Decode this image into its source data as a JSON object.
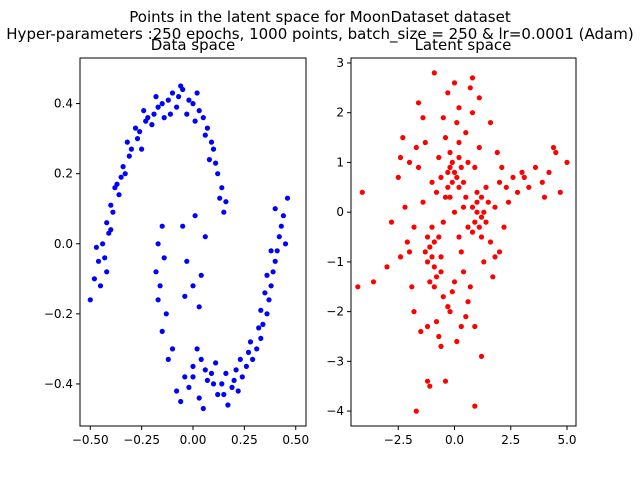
{
  "figure": {
    "title_line1": "Points in the latent space for MoonDataset dataset",
    "title_line2": "Hyper-parameters :250 epochs, 1000 points, batch_size = 250 & lr=0.0001 (Adam)"
  },
  "chart_data": [
    {
      "type": "scatter",
      "title": "Data space",
      "xlabel": "",
      "ylabel": "",
      "xlim": [
        -0.55,
        0.55
      ],
      "ylim": [
        -0.52,
        0.53
      ],
      "xticks": [
        -0.5,
        -0.25,
        0.0,
        0.25,
        0.5
      ],
      "xtick_labels": [
        "−0.50",
        "−0.25",
        "0.00",
        "0.25",
        "0.50"
      ],
      "yticks": [
        -0.4,
        -0.2,
        0.0,
        0.2,
        0.4
      ],
      "ytick_labels": [
        "−0.4",
        "−0.2",
        "0.0",
        "0.2",
        "0.4"
      ],
      "grid": false,
      "color": "#0000ff",
      "points": [
        [
          -0.5,
          -0.16
        ],
        [
          -0.48,
          -0.1
        ],
        [
          -0.46,
          -0.05
        ],
        [
          -0.44,
          0.0
        ],
        [
          -0.42,
          0.06
        ],
        [
          -0.4,
          0.11
        ],
        [
          -0.37,
          0.17
        ],
        [
          -0.34,
          0.22
        ],
        [
          -0.3,
          0.27
        ],
        [
          -0.26,
          0.32
        ],
        [
          -0.22,
          0.36
        ],
        [
          -0.17,
          0.39
        ],
        [
          -0.12,
          0.41
        ],
        [
          -0.07,
          0.42
        ],
        [
          -0.02,
          0.41
        ],
        [
          0.03,
          0.38
        ],
        [
          0.07,
          0.33
        ],
        [
          0.1,
          0.27
        ],
        [
          0.12,
          0.2
        ],
        [
          0.13,
          0.13
        ],
        [
          -0.45,
          -0.12
        ],
        [
          -0.43,
          -0.04
        ],
        [
          -0.41,
          0.03
        ],
        [
          -0.39,
          0.09
        ],
        [
          -0.35,
          0.19
        ],
        [
          -0.31,
          0.25
        ],
        [
          -0.27,
          0.3
        ],
        [
          -0.23,
          0.35
        ],
        [
          -0.19,
          0.37
        ],
        [
          -0.15,
          0.4
        ],
        [
          -0.1,
          0.43
        ],
        [
          -0.05,
          0.44
        ],
        [
          0.0,
          0.4
        ],
        [
          0.05,
          0.36
        ],
        [
          0.09,
          0.29
        ],
        [
          0.11,
          0.23
        ],
        [
          0.14,
          0.16
        ],
        [
          0.15,
          0.09
        ],
        [
          -0.36,
          0.14
        ],
        [
          -0.33,
          0.2
        ],
        [
          -0.28,
          0.33
        ],
        [
          -0.24,
          0.38
        ],
        [
          -0.2,
          0.34
        ],
        [
          -0.14,
          0.36
        ],
        [
          -0.08,
          0.39
        ],
        [
          -0.03,
          0.37
        ],
        [
          0.02,
          0.43
        ],
        [
          0.06,
          0.31
        ],
        [
          0.08,
          0.24
        ],
        [
          0.16,
          0.12
        ],
        [
          -0.4,
          0.04
        ],
        [
          -0.42,
          -0.08
        ],
        [
          -0.47,
          -0.01
        ],
        [
          -0.38,
          0.16
        ],
        [
          -0.32,
          0.29
        ],
        [
          -0.25,
          0.27
        ],
        [
          -0.18,
          0.42
        ],
        [
          -0.11,
          0.37
        ],
        [
          -0.06,
          0.45
        ],
        [
          0.01,
          0.35
        ],
        [
          -0.08,
          -0.42
        ],
        [
          -0.04,
          -0.38
        ],
        [
          0.0,
          -0.35
        ],
        [
          0.04,
          -0.33
        ],
        [
          0.09,
          -0.37
        ],
        [
          0.14,
          -0.4
        ],
        [
          0.19,
          -0.41
        ],
        [
          0.24,
          -0.38
        ],
        [
          0.29,
          -0.33
        ],
        [
          0.33,
          -0.27
        ],
        [
          0.36,
          -0.2
        ],
        [
          0.38,
          -0.12
        ],
        [
          0.4,
          -0.05
        ],
        [
          0.42,
          0.02
        ],
        [
          0.44,
          0.08
        ],
        [
          0.46,
          0.13
        ],
        [
          -0.12,
          -0.33
        ],
        [
          -0.15,
          -0.25
        ],
        [
          -0.17,
          -0.16
        ],
        [
          -0.18,
          -0.08
        ],
        [
          -0.17,
          0.0
        ],
        [
          -0.15,
          0.05
        ],
        [
          -0.06,
          -0.45
        ],
        [
          -0.02,
          -0.41
        ],
        [
          0.03,
          -0.44
        ],
        [
          0.07,
          -0.39
        ],
        [
          0.12,
          -0.43
        ],
        [
          0.17,
          -0.46
        ],
        [
          0.22,
          -0.42
        ],
        [
          0.26,
          -0.35
        ],
        [
          0.31,
          -0.3
        ],
        [
          0.34,
          -0.23
        ],
        [
          0.37,
          -0.16
        ],
        [
          0.39,
          -0.08
        ],
        [
          0.41,
          -0.02
        ],
        [
          0.43,
          0.05
        ],
        [
          -0.1,
          -0.3
        ],
        [
          -0.13,
          -0.2
        ],
        [
          -0.16,
          -0.12
        ],
        [
          -0.14,
          -0.04
        ],
        [
          0.02,
          -0.3
        ],
        [
          0.06,
          -0.36
        ],
        [
          0.11,
          -0.34
        ],
        [
          0.16,
          -0.37
        ],
        [
          0.21,
          -0.36
        ],
        [
          0.27,
          -0.31
        ],
        [
          0.32,
          -0.24
        ],
        [
          0.35,
          -0.14
        ],
        [
          0.38,
          -0.02
        ],
        [
          0.4,
          0.1
        ],
        [
          0.0,
          -0.38
        ],
        [
          0.05,
          -0.47
        ],
        [
          0.1,
          -0.4
        ],
        [
          0.15,
          -0.43
        ],
        [
          0.2,
          -0.39
        ],
        [
          0.23,
          -0.33
        ],
        [
          0.28,
          -0.28
        ],
        [
          0.33,
          -0.19
        ],
        [
          0.36,
          -0.09
        ],
        [
          0.45,
          0.0
        ],
        [
          -0.05,
          0.05
        ],
        [
          -0.03,
          -0.05
        ],
        [
          0.0,
          -0.12
        ],
        [
          0.03,
          -0.18
        ],
        [
          0.06,
          0.02
        ],
        [
          0.04,
          -0.09
        ],
        [
          -0.04,
          -0.15
        ],
        [
          0.01,
          0.08
        ]
      ]
    },
    {
      "type": "scatter",
      "title": "Latent space",
      "xlabel": "",
      "ylabel": "",
      "xlim": [
        -4.6,
        5.4
      ],
      "ylim": [
        -4.3,
        3.1
      ],
      "xticks": [
        -2.5,
        0.0,
        2.5,
        5.0
      ],
      "xtick_labels": [
        "−2.5",
        "0.0",
        "2.5",
        "5.0"
      ],
      "yticks": [
        -4,
        -3,
        -2,
        -1,
        0,
        1,
        2,
        3
      ],
      "ytick_labels": [
        "−4",
        "−3",
        "−2",
        "−1",
        "0",
        "1",
        "2",
        "3"
      ],
      "grid": false,
      "color": "#ff0000",
      "points": [
        [
          0.0,
          0.0
        ],
        [
          0.2,
          0.5
        ],
        [
          -0.3,
          0.8
        ],
        [
          0.5,
          0.3
        ],
        [
          -0.5,
          -0.2
        ],
        [
          0.8,
          -0.4
        ],
        [
          -0.8,
          0.4
        ],
        [
          0.3,
          -0.8
        ],
        [
          -0.2,
          1.2
        ],
        [
          0.6,
          1.0
        ],
        [
          -0.6,
          -0.9
        ],
        [
          1.0,
          0.2
        ],
        [
          -1.0,
          0.6
        ],
        [
          0.4,
          -1.2
        ],
        [
          -0.4,
          1.5
        ],
        [
          1.2,
          -0.1
        ],
        [
          -1.2,
          -0.5
        ],
        [
          0.1,
          1.8
        ],
        [
          -0.1,
          -1.6
        ],
        [
          0.9,
          0.9
        ],
        [
          -0.9,
          -1.1
        ],
        [
          1.4,
          0.5
        ],
        [
          -1.4,
          0.2
        ],
        [
          0.7,
          -1.5
        ],
        [
          -0.7,
          1.1
        ],
        [
          0.2,
          2.1
        ],
        [
          -0.2,
          -2.0
        ],
        [
          1.6,
          -0.6
        ],
        [
          -1.6,
          0.9
        ],
        [
          0.5,
          1.6
        ],
        [
          -0.5,
          -1.7
        ],
        [
          1.1,
          1.3
        ],
        [
          -1.1,
          -1.4
        ],
        [
          0.3,
          -2.3
        ],
        [
          -0.3,
          2.4
        ],
        [
          1.8,
          0.1
        ],
        [
          -1.8,
          -0.3
        ],
        [
          0.8,
          2.0
        ],
        [
          -0.8,
          -2.2
        ],
        [
          1.3,
          -1.0
        ],
        [
          -1.3,
          1.4
        ],
        [
          2.0,
          0.6
        ],
        [
          -2.0,
          -0.8
        ],
        [
          0.0,
          2.6
        ],
        [
          0.1,
          -2.6
        ],
        [
          0.4,
          0.1
        ],
        [
          -0.4,
          0.3
        ],
        [
          0.6,
          -0.3
        ],
        [
          -0.6,
          0.7
        ],
        [
          0.2,
          -0.5
        ],
        [
          1.0,
          0.0
        ],
        [
          1.1,
          -0.3
        ],
        [
          1.2,
          0.3
        ],
        [
          1.3,
          0.0
        ],
        [
          0.9,
          -0.2
        ],
        [
          1.4,
          -0.2
        ],
        [
          1.0,
          0.4
        ],
        [
          1.5,
          0.2
        ],
        [
          0.8,
          0.1
        ],
        [
          1.2,
          -0.5
        ],
        [
          -0.2,
          0.9
        ],
        [
          -0.1,
          0.6
        ],
        [
          0.0,
          0.8
        ],
        [
          0.1,
          0.7
        ],
        [
          -0.3,
          0.5
        ],
        [
          0.3,
          0.9
        ],
        [
          -0.2,
          0.3
        ],
        [
          0.4,
          0.6
        ],
        [
          -0.1,
          1.0
        ],
        [
          0.2,
          1.1
        ],
        [
          -0.9,
          -0.6
        ],
        [
          -1.0,
          -0.9
        ],
        [
          -1.1,
          -0.7
        ],
        [
          -0.8,
          -1.3
        ],
        [
          -1.2,
          -1.0
        ],
        [
          -0.7,
          -0.5
        ],
        [
          -1.3,
          -0.8
        ],
        [
          -0.9,
          -1.5
        ],
        [
          -1.0,
          -0.3
        ],
        [
          -0.6,
          -1.2
        ],
        [
          2.6,
          0.7
        ],
        [
          3.0,
          0.8
        ],
        [
          3.3,
          0.5
        ],
        [
          3.6,
          0.9
        ],
        [
          3.9,
          0.6
        ],
        [
          4.2,
          0.8
        ],
        [
          4.4,
          1.3
        ],
        [
          4.7,
          0.4
        ],
        [
          5.0,
          1.0
        ],
        [
          2.8,
          0.4
        ],
        [
          3.1,
          0.7
        ],
        [
          4.0,
          0.3
        ],
        [
          4.5,
          1.2
        ],
        [
          -3.0,
          -1.1
        ],
        [
          -3.6,
          -1.4
        ],
        [
          -4.3,
          -1.5
        ],
        [
          -4.1,
          0.4
        ],
        [
          -2.5,
          0.7
        ],
        [
          -2.8,
          -0.2
        ],
        [
          -2.4,
          -0.9
        ],
        [
          -1.6,
          2.2
        ],
        [
          -1.4,
          1.9
        ],
        [
          -0.9,
          2.8
        ],
        [
          0.8,
          2.7
        ],
        [
          0.7,
          2.5
        ],
        [
          1.1,
          2.3
        ],
        [
          -2.3,
          1.5
        ],
        [
          -1.8,
          -2.0
        ],
        [
          -1.5,
          -2.4
        ],
        [
          -1.2,
          -2.3
        ],
        [
          -0.7,
          -2.5
        ],
        [
          -0.6,
          -2.7
        ],
        [
          0.5,
          -2.1
        ],
        [
          0.9,
          -2.3
        ],
        [
          1.2,
          -2.9
        ],
        [
          -0.4,
          -3.4
        ],
        [
          -1.1,
          -3.5
        ],
        [
          -1.2,
          -3.4
        ],
        [
          0.9,
          -3.9
        ],
        [
          -1.7,
          -4.0
        ],
        [
          2.0,
          -0.8
        ],
        [
          2.2,
          -0.3
        ],
        [
          2.4,
          0.2
        ],
        [
          1.9,
          1.2
        ],
        [
          2.1,
          0.9
        ],
        [
          1.7,
          -1.3
        ],
        [
          1.6,
          1.8
        ],
        [
          1.8,
          -0.9
        ],
        [
          2.3,
          0.5
        ],
        [
          -2.2,
          0.1
        ],
        [
          -2.0,
          1.0
        ],
        [
          -1.9,
          -1.5
        ],
        [
          -2.1,
          -0.6
        ],
        [
          -2.4,
          1.1
        ],
        [
          -1.7,
          1.3
        ],
        [
          0.6,
          -1.8
        ],
        [
          -0.3,
          -1.9
        ],
        [
          0.0,
          -1.4
        ],
        [
          0.2,
          1.4
        ],
        [
          -0.5,
          1.9
        ]
      ]
    }
  ]
}
